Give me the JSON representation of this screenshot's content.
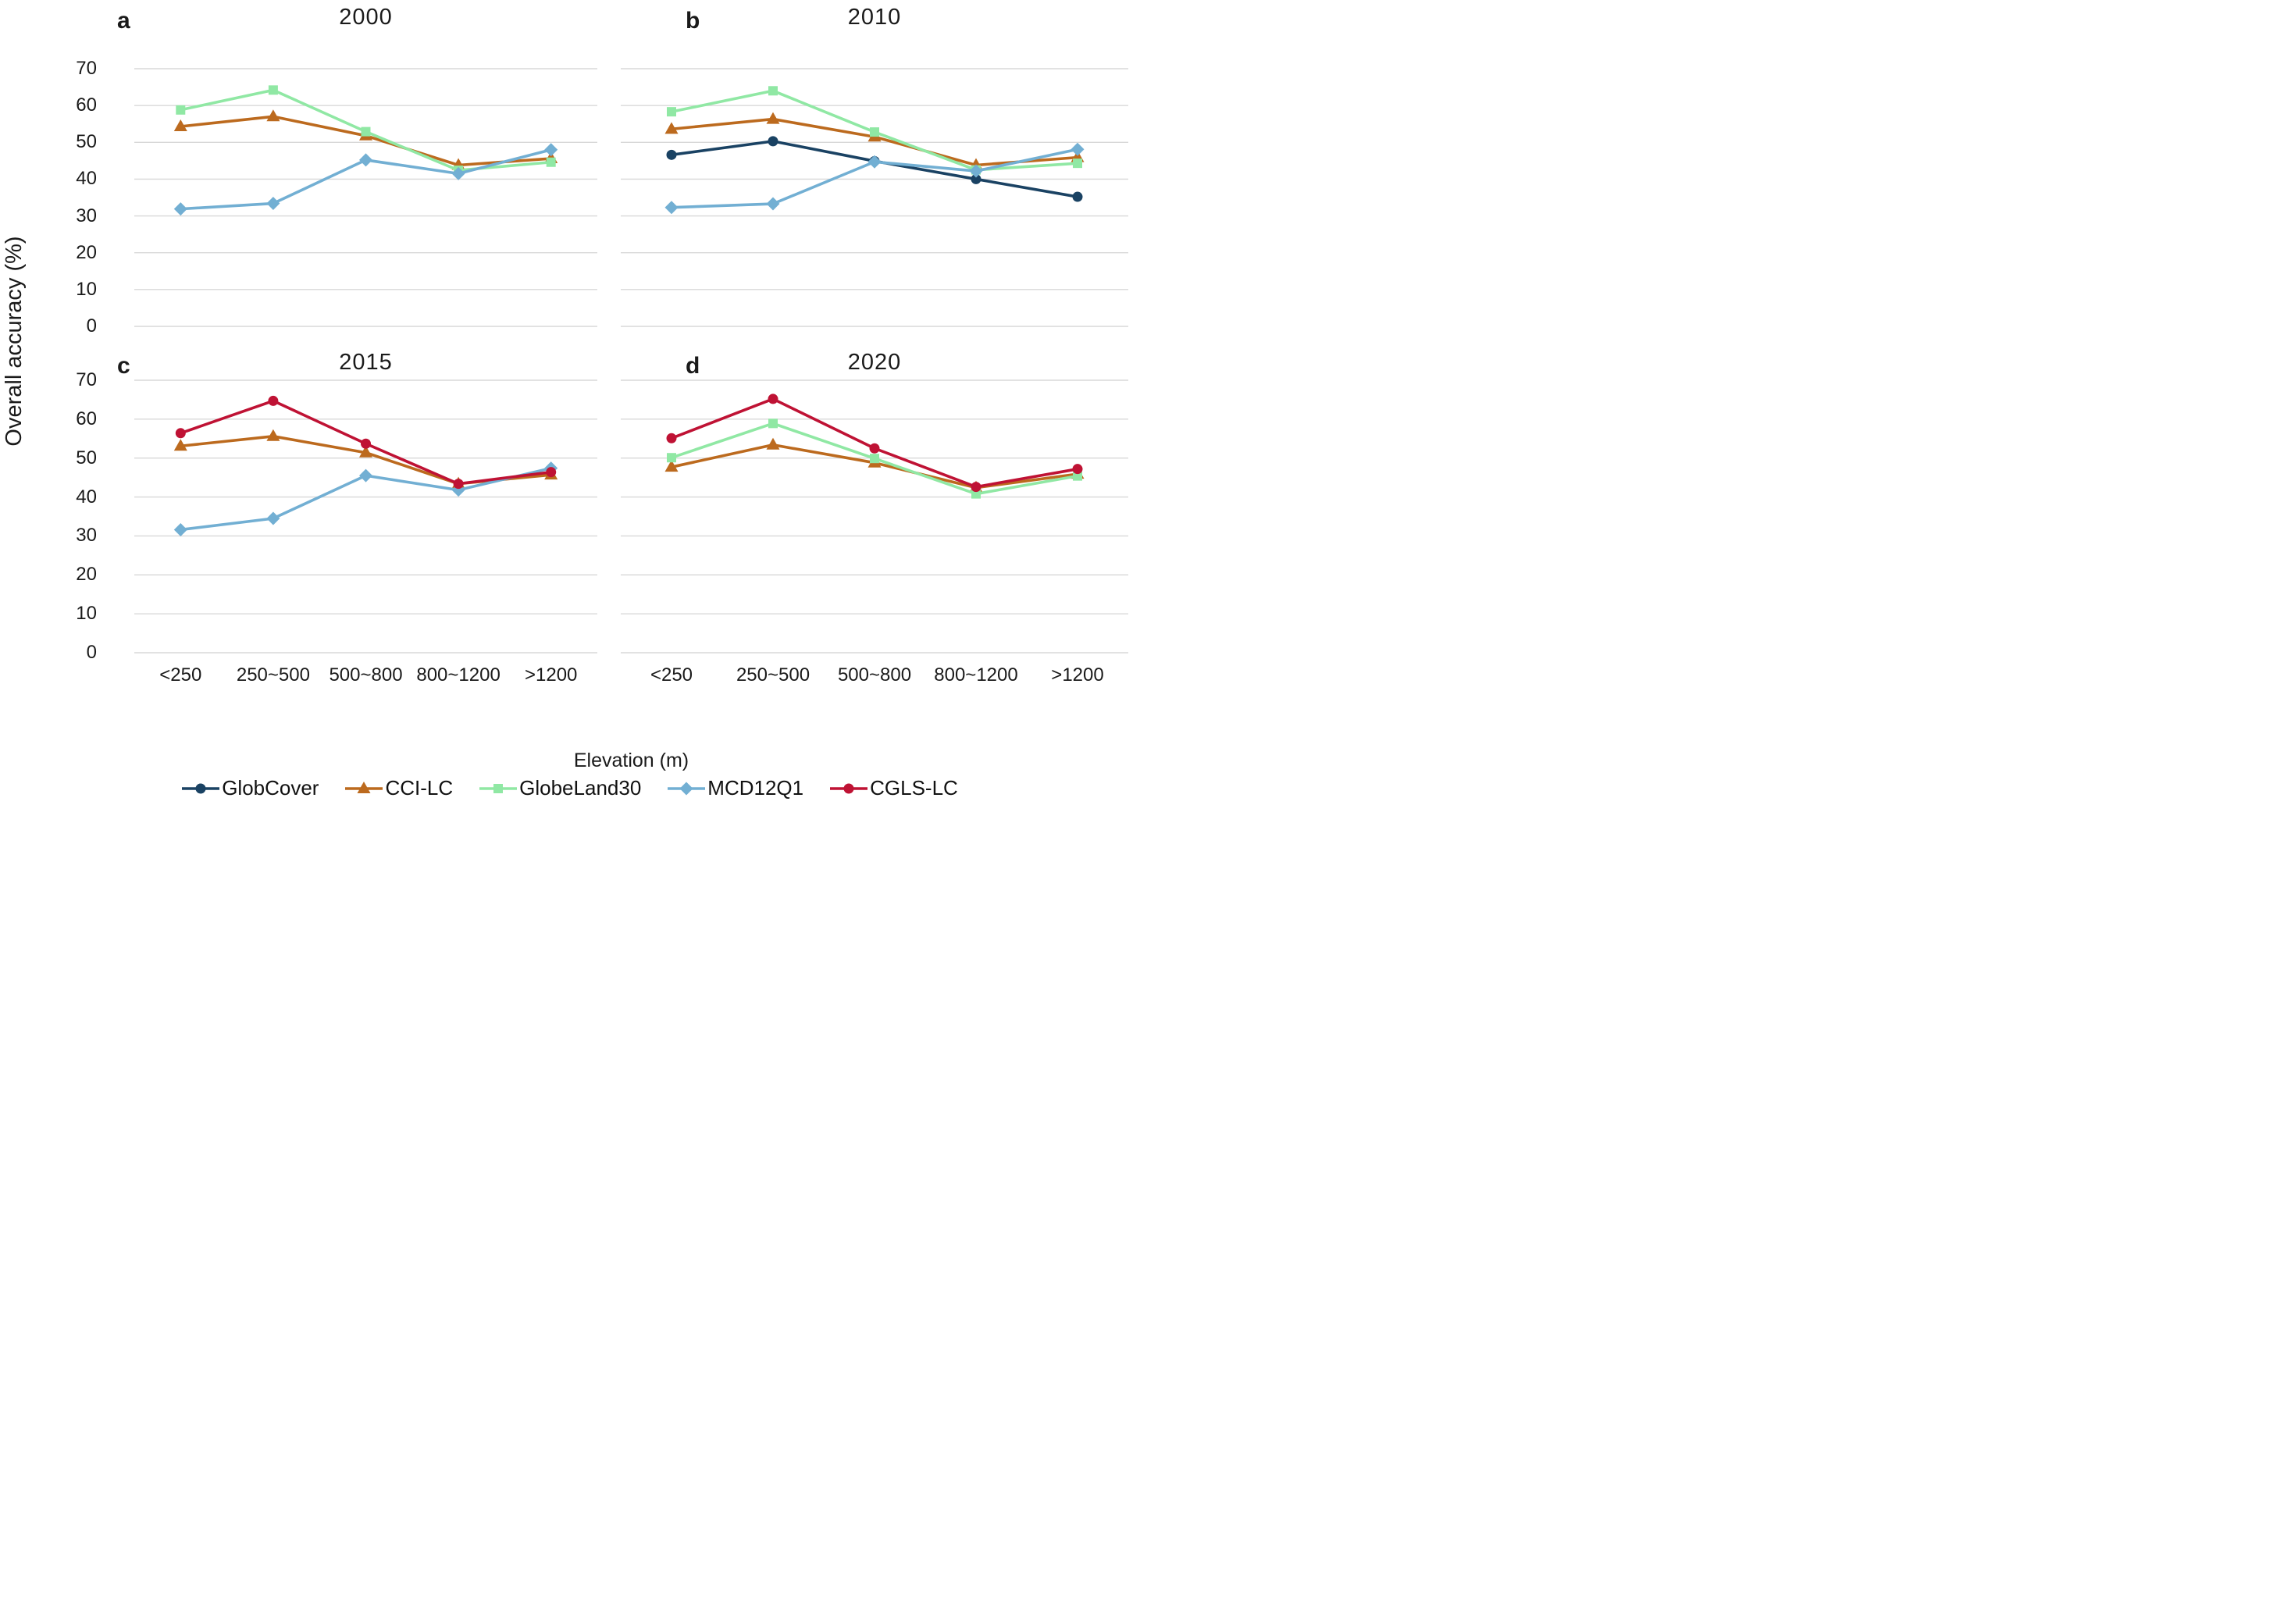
{
  "figure": {
    "y_axis_label": "Overall accuracy (%)",
    "x_axis_label": "Elevation (m)",
    "y_ticks": [
      70,
      60,
      50,
      40,
      30,
      20,
      10,
      0
    ],
    "categories": [
      "<250",
      "250~500",
      "500~800",
      "800~1200",
      ">1200"
    ],
    "grid_color": "#d8d8d8",
    "text_color": "#1a1a1a"
  },
  "series_styles": {
    "GlobCover": {
      "color": "#1a4263",
      "marker": "circle"
    },
    "CCI-LC": {
      "color": "#bc6a1e",
      "marker": "triangle"
    },
    "GlobeLand30": {
      "color": "#90e8a4",
      "marker": "square"
    },
    "MCD12Q1": {
      "color": "#72afd3",
      "marker": "diamond"
    },
    "CGLS-LC": {
      "color": "#bf1234",
      "marker": "circle"
    }
  },
  "legend": {
    "items": [
      "GlobCover",
      "CCI-LC",
      "GlobeLand30",
      "MCD12Q1",
      "CGLS-LC"
    ]
  },
  "chart_data": [
    {
      "panel": "a",
      "title": "2000",
      "type": "line",
      "ylim": [
        0,
        70
      ],
      "grid": true,
      "categories": [
        "<250",
        "250~500",
        "500~800",
        "800~1200",
        ">1200"
      ],
      "series": [
        {
          "name": "CCI-LC",
          "values": [
            54.3,
            57.0,
            51.8,
            43.8,
            45.6
          ]
        },
        {
          "name": "GlobeLand30",
          "values": [
            58.8,
            64.2,
            52.9,
            42.4,
            44.6
          ]
        },
        {
          "name": "MCD12Q1",
          "values": [
            31.9,
            33.4,
            45.2,
            41.5,
            48.0
          ]
        }
      ]
    },
    {
      "panel": "b",
      "title": "2010",
      "type": "line",
      "ylim": [
        0,
        70
      ],
      "grid": true,
      "categories": [
        "<250",
        "250~500",
        "500~800",
        "800~1200",
        ">1200"
      ],
      "series": [
        {
          "name": "GlobCover",
          "values": [
            46.6,
            50.3,
            44.9,
            40.0,
            35.2
          ]
        },
        {
          "name": "CCI-LC",
          "values": [
            53.6,
            56.3,
            51.5,
            43.8,
            45.9
          ]
        },
        {
          "name": "GlobeLand30",
          "values": [
            58.3,
            64.0,
            52.8,
            42.5,
            44.3
          ]
        },
        {
          "name": "MCD12Q1",
          "values": [
            32.3,
            33.3,
            44.7,
            42.2,
            48.1
          ]
        }
      ]
    },
    {
      "panel": "c",
      "title": "2015",
      "type": "line",
      "ylim": [
        0,
        70
      ],
      "grid": true,
      "categories": [
        "<250",
        "250~500",
        "500~800",
        "800~1200",
        ">1200"
      ],
      "series": [
        {
          "name": "CCI-LC",
          "values": [
            53.1,
            55.6,
            51.4,
            43.4,
            45.7
          ]
        },
        {
          "name": "MCD12Q1",
          "values": [
            31.6,
            34.5,
            45.5,
            41.8,
            47.4
          ]
        },
        {
          "name": "CGLS-LC",
          "values": [
            56.4,
            64.7,
            53.7,
            43.4,
            46.4
          ]
        }
      ]
    },
    {
      "panel": "d",
      "title": "2020",
      "type": "line",
      "ylim": [
        0,
        70
      ],
      "grid": true,
      "categories": [
        "<250",
        "250~500",
        "500~800",
        "800~1200",
        ">1200"
      ],
      "series": [
        {
          "name": "CCI-LC",
          "values": [
            47.7,
            53.4,
            48.8,
            42.4,
            45.9
          ]
        },
        {
          "name": "GlobeLand30",
          "values": [
            50.1,
            58.9,
            49.9,
            40.8,
            45.4
          ]
        },
        {
          "name": "CGLS-LC",
          "values": [
            55.1,
            65.2,
            52.5,
            42.6,
            47.2
          ]
        }
      ]
    }
  ]
}
